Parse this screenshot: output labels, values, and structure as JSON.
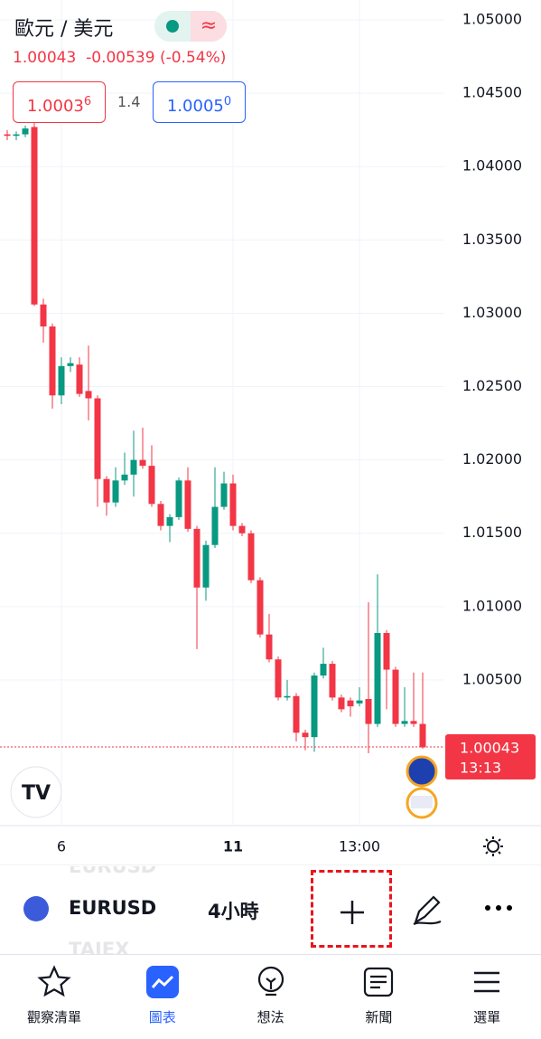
{
  "header": {
    "symbol": "歐元 / 美元",
    "price": "1.00043",
    "change": "-0.00539",
    "change_pct": "(-0.54%)"
  },
  "quote": {
    "bid": "1.0003",
    "bid_pip": "6",
    "spread": "1.4",
    "ask": "1.0005",
    "ask_pip": "0"
  },
  "chart_data": {
    "type": "candlestick",
    "open": [
      1.0422,
      1.0421,
      1.0422,
      1.0427,
      1.0306,
      1.0291,
      1.0244,
      1.0264,
      1.0265,
      1.0247,
      1.0242,
      1.0187,
      1.0171,
      1.0186,
      1.019,
      1.02,
      1.0196,
      1.017,
      1.0155,
      1.0161,
      1.0186,
      1.0153,
      1.0113,
      1.0142,
      1.0168,
      1.0184,
      1.0155,
      1.015,
      1.0118,
      1.0081,
      1.0064,
      1.0038,
      1.0039,
      1.0014,
      1.0011,
      1.0053,
      1.0061,
      1.0038,
      1.0036,
      1.0034,
      1.0037,
      1.002,
      1.0082,
      1.0057,
      1.002,
      1.0022,
      1.002
    ],
    "high": [
      1.0425,
      1.0424,
      1.0428,
      1.0432,
      1.031,
      1.0293,
      1.027,
      1.027,
      1.027,
      1.0278,
      1.0244,
      1.0189,
      1.0195,
      1.0205,
      1.022,
      1.0222,
      1.021,
      1.0172,
      1.0163,
      1.0188,
      1.0195,
      1.0155,
      1.0145,
      1.0195,
      1.0192,
      1.019,
      1.0157,
      1.0152,
      1.012,
      1.0095,
      1.0066,
      1.005,
      1.0041,
      1.0016,
      1.0055,
      1.0072,
      1.0063,
      1.004,
      1.0038,
      1.0045,
      1.0103,
      1.0122,
      1.0084,
      1.0059,
      1.0045,
      1.0055,
      1.0055
    ],
    "low": [
      1.0418,
      1.0418,
      1.042,
      1.0305,
      1.028,
      1.0235,
      1.0238,
      1.026,
      1.0243,
      1.0227,
      1.0168,
      1.0162,
      1.0168,
      1.0183,
      1.0175,
      1.0194,
      1.0168,
      1.0152,
      1.0144,
      1.0159,
      1.0151,
      1.0071,
      1.0104,
      1.014,
      1.0166,
      1.0152,
      1.0148,
      1.0116,
      1.0079,
      1.0062,
      1.0036,
      1.0036,
      1.0008,
      1.0002,
      1.0001,
      1.0051,
      1.0036,
      1.0028,
      1.0025,
      1.0032,
      1.0,
      1.0018,
      1.003,
      1.0018,
      1.0018,
      1.0018,
      1.0003
    ],
    "close": [
      1.0421,
      1.0422,
      1.0426,
      1.0306,
      1.0291,
      1.0244,
      1.0264,
      1.0266,
      1.0245,
      1.0242,
      1.0187,
      1.0171,
      1.0186,
      1.019,
      1.02,
      1.0196,
      1.017,
      1.0155,
      1.0161,
      1.0186,
      1.0153,
      1.0113,
      1.0142,
      1.0168,
      1.0184,
      1.0155,
      1.015,
      1.0118,
      1.0081,
      1.0064,
      1.0038,
      1.0039,
      1.0014,
      1.0011,
      1.0053,
      1.0061,
      1.0038,
      1.003,
      1.0032,
      1.0036,
      1.002,
      1.0082,
      1.0057,
      1.002,
      1.0022,
      1.002,
      1.0004
    ],
    "up_color": "#089981",
    "down_color": "#f23645",
    "ylim": [
      0.99513,
      1.05136
    ],
    "yticks": [
      {
        "value": 1.05,
        "label": "1.05000"
      },
      {
        "value": 1.045,
        "label": "1.04500"
      },
      {
        "value": 1.04,
        "label": "1.04000"
      },
      {
        "value": 1.035,
        "label": "1.03500"
      },
      {
        "value": 1.03,
        "label": "1.03000"
      },
      {
        "value": 1.025,
        "label": "1.02500"
      },
      {
        "value": 1.02,
        "label": "1.02000"
      },
      {
        "value": 1.015,
        "label": "1.01500"
      },
      {
        "value": 1.01,
        "label": "1.01000"
      },
      {
        "value": 1.005,
        "label": "1.00500"
      }
    ],
    "x_labels": [
      "6",
      "11",
      "13:00"
    ],
    "last_price": {
      "value": 1.00043,
      "label": "1.00043"
    },
    "countdown": "13:13",
    "grid": true
  },
  "toolbar": {
    "ghost_top": "EURUSD",
    "symbol": "EURUSD",
    "interval": "4小時",
    "ghost_bottom": "TAIEX"
  },
  "nav": [
    "觀察清單",
    "圖表",
    "想法",
    "新聞",
    "選單"
  ]
}
